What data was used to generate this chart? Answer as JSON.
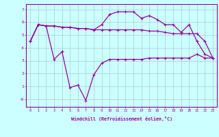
{
  "xlabel": "Windchill (Refroidissement éolien,°C)",
  "hours": [
    0,
    1,
    2,
    3,
    4,
    5,
    6,
    7,
    8,
    9,
    10,
    11,
    12,
    13,
    14,
    15,
    16,
    17,
    18,
    19,
    20,
    21,
    22,
    23
  ],
  "temp": [
    4.5,
    5.8,
    5.7,
    5.7,
    5.6,
    5.6,
    5.5,
    5.5,
    5.4,
    5.4,
    5.4,
    5.4,
    5.4,
    5.4,
    5.4,
    5.3,
    5.3,
    5.2,
    5.1,
    5.1,
    5.1,
    5.1,
    4.5,
    3.2
  ],
  "windchill": [
    4.5,
    5.8,
    5.7,
    3.1,
    3.7,
    0.9,
    1.1,
    -0.1,
    1.9,
    2.8,
    3.1,
    3.1,
    3.1,
    3.1,
    3.1,
    3.2,
    3.2,
    3.2,
    3.2,
    3.2,
    3.2,
    3.5,
    3.2,
    3.2
  ],
  "temp2": [
    4.5,
    5.8,
    5.7,
    5.7,
    5.6,
    5.6,
    5.5,
    5.5,
    5.4,
    5.8,
    6.6,
    6.8,
    6.8,
    6.8,
    6.3,
    6.5,
    6.2,
    5.8,
    5.8,
    5.2,
    5.8,
    4.5,
    3.5,
    3.2
  ],
  "line_color": "#990099",
  "bg_color": "#ccffff",
  "grid_color": "#aacccc",
  "ylim": [
    -0.6,
    7.4
  ],
  "xlim": [
    -0.5,
    23.5
  ]
}
